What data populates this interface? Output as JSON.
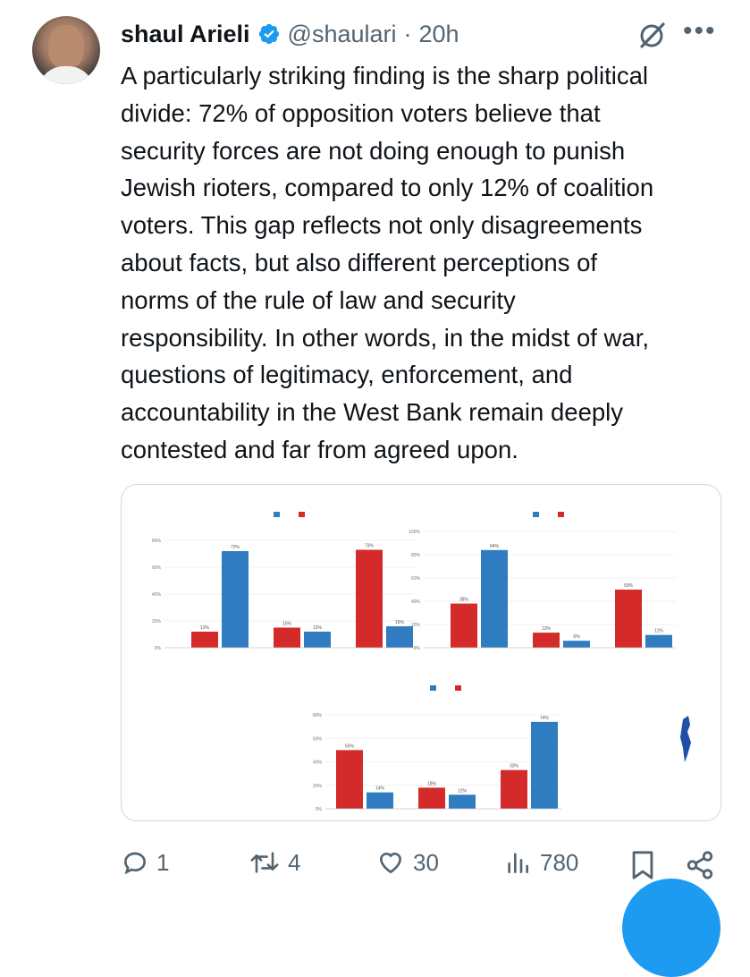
{
  "tweet": {
    "author_name": "shaul Arieli",
    "handle": "@shaulari",
    "separator": "·",
    "time": "20h",
    "text": "A particularly striking finding is the sharp political\ndivide: 72% of opposition voters believe that\nsecurity forces are not doing enough to punish\nJewish rioters, compared to only 12% of coalition\nvoters. This gap reflects not only disagreements\nabout facts, but also different perceptions of\nnorms of the rule of law and security\nresponsibility. In other words, in the midst of war,\nquestions of legitimacy, enforcement, and\naccountability in the West Bank remain deeply\ncontested and far from agreed upon."
  },
  "actions": {
    "replies": "1",
    "reposts": "4",
    "likes": "30",
    "views": "780"
  },
  "colors": {
    "opposition": "#2f7cc1",
    "coalition": "#d42a2a",
    "accent": "#1d9bf0",
    "muted": "#536471"
  },
  "chart_data": [
    {
      "type": "bar",
      "ylim": [
        0,
        80
      ],
      "yticks": [
        "0%",
        "20%",
        "40%",
        "60%",
        "80%"
      ],
      "series": [
        {
          "values": [
            12,
            15,
            73
          ]
        },
        {
          "values": [
            72,
            12,
            16
          ]
        }
      ],
      "data_labels": [
        [
          "12%",
          "15%",
          "73%"
        ],
        [
          "72%",
          "12%",
          "16%"
        ]
      ]
    },
    {
      "type": "bar",
      "ylim": [
        0,
        100
      ],
      "yticks": [
        "0%",
        "20%",
        "40%",
        "60%",
        "80%",
        "100%"
      ],
      "series": [
        {
          "values": [
            38,
            13,
            50
          ]
        },
        {
          "values": [
            84,
            6,
            11
          ]
        }
      ],
      "data_labels": [
        [
          "38%",
          "13%",
          "50%"
        ],
        [
          "84%",
          "6%",
          "11%"
        ]
      ]
    },
    {
      "type": "bar",
      "ylim": [
        0,
        80
      ],
      "yticks": [
        "0%",
        "20%",
        "40%",
        "60%",
        "80%"
      ],
      "series": [
        {
          "values": [
            50,
            18,
            33
          ]
        },
        {
          "values": [
            14,
            12,
            74
          ]
        }
      ],
      "data_labels": [
        [
          "50%",
          "18%",
          "33%"
        ],
        [
          "14%",
          "12%",
          "74%"
        ]
      ]
    }
  ]
}
